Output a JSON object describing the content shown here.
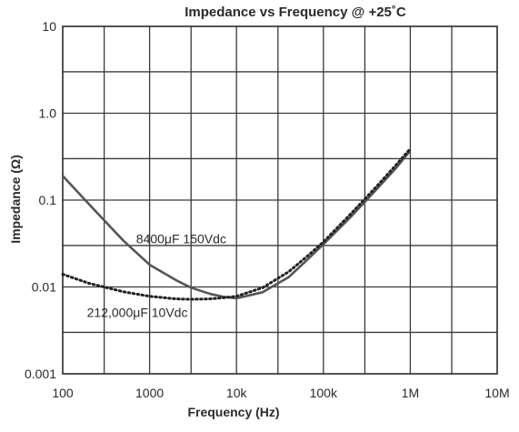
{
  "chart_data": {
    "type": "line",
    "title": "Impedance vs Frequency @ +25˚C",
    "xlabel": "Frequency (Hz)",
    "ylabel": "Impedance (Ω)",
    "x_scale": "log",
    "y_scale": "log",
    "xlim": [
      100,
      10000000
    ],
    "ylim": [
      0.001,
      10
    ],
    "x_ticks": [
      {
        "value": 100,
        "label": "100"
      },
      {
        "value": 1000,
        "label": "1000"
      },
      {
        "value": 10000,
        "label": "10k"
      },
      {
        "value": 100000,
        "label": "100k"
      },
      {
        "value": 1000000,
        "label": "1M"
      },
      {
        "value": 10000000,
        "label": "10M"
      }
    ],
    "y_ticks": [
      {
        "value": 10,
        "label": "10"
      },
      {
        "value": 1,
        "label": "1.0"
      },
      {
        "value": 0.1,
        "label": "0.1"
      },
      {
        "value": 0.01,
        "label": "0.01"
      },
      {
        "value": 0.001,
        "label": "0.001"
      }
    ],
    "grid": true,
    "series": [
      {
        "name": "8400μF 150Vdc",
        "line_style": "solid",
        "color": "#555555",
        "points": [
          [
            100,
            0.19
          ],
          [
            200,
            0.09
          ],
          [
            500,
            0.034
          ],
          [
            1000,
            0.018
          ],
          [
            2000,
            0.012
          ],
          [
            3000,
            0.0098
          ],
          [
            5000,
            0.0083
          ],
          [
            7000,
            0.0077
          ],
          [
            10000,
            0.0074
          ],
          [
            20000,
            0.0087
          ],
          [
            40000,
            0.013
          ],
          [
            70000,
            0.022
          ],
          [
            100000,
            0.031
          ],
          [
            200000,
            0.062
          ],
          [
            400000,
            0.13
          ],
          [
            700000,
            0.24
          ],
          [
            1000000,
            0.37
          ]
        ]
      },
      {
        "name": "212,000μF 10Vdc",
        "line_style": "dotted",
        "color": "#222222",
        "points": [
          [
            100,
            0.014
          ],
          [
            200,
            0.011
          ],
          [
            500,
            0.0088
          ],
          [
            1000,
            0.0078
          ],
          [
            2000,
            0.0073
          ],
          [
            3000,
            0.0072
          ],
          [
            5000,
            0.0073
          ],
          [
            7000,
            0.0075
          ],
          [
            10000,
            0.0078
          ],
          [
            20000,
            0.0098
          ],
          [
            40000,
            0.015
          ],
          [
            70000,
            0.024
          ],
          [
            100000,
            0.033
          ],
          [
            200000,
            0.067
          ],
          [
            400000,
            0.14
          ],
          [
            700000,
            0.26
          ],
          [
            1000000,
            0.39
          ]
        ]
      }
    ],
    "annotations": [
      {
        "text": "8400μF 150Vdc",
        "series": 0
      },
      {
        "text": "212,000μF 10Vdc",
        "series": 1
      }
    ]
  },
  "colors": {
    "plot_border": "#2a2a2a",
    "grid": "#3a3a3a",
    "background": "#ffffff"
  }
}
